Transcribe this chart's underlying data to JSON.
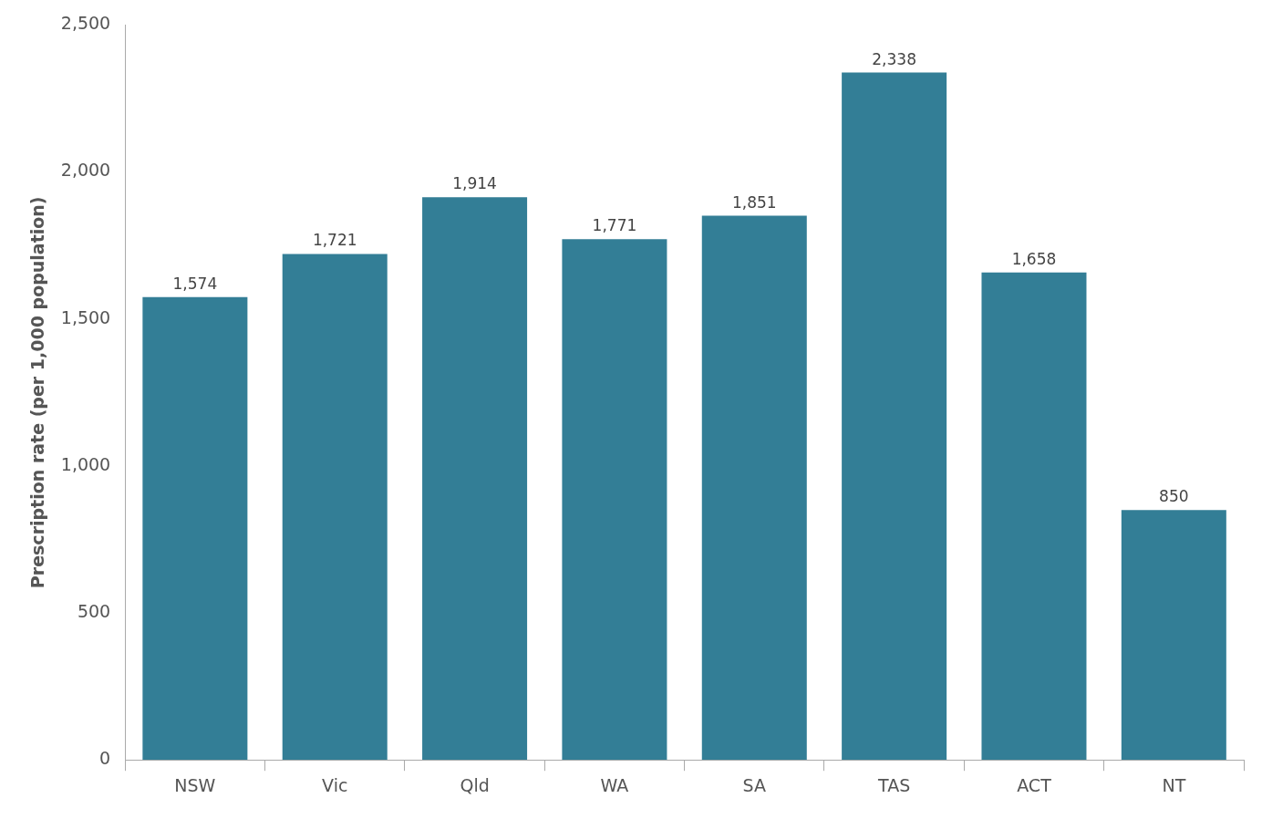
{
  "chart_data": {
    "type": "bar",
    "ylabel": "Prescription rate (per 1,000 population)",
    "categories": [
      "NSW",
      "Vic",
      "Qld",
      "WA",
      "SA",
      "TAS",
      "ACT",
      "NT"
    ],
    "values": [
      1574,
      1721,
      1914,
      1771,
      1851,
      2338,
      1658,
      850
    ],
    "value_labels": [
      "1,574",
      "1,721",
      "1,914",
      "1,771",
      "1,851",
      "2,338",
      "1,658",
      "850"
    ],
    "color": "#337e96",
    "ylim": [
      0,
      2500
    ],
    "yticks": [
      0,
      500,
      {
        "value": 1000,
        "label": "1,000"
      },
      {
        "value": 1500,
        "label": "1,500"
      },
      {
        "value": 2000,
        "label": "2,000"
      },
      {
        "value": 2500,
        "label": "2,500"
      }
    ],
    "grid": false,
    "legend": false
  }
}
